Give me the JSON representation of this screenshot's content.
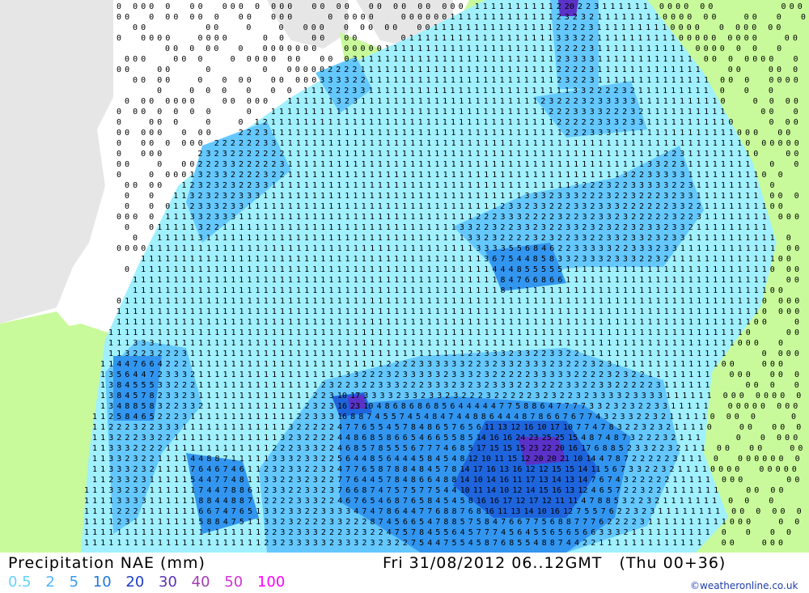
{
  "title": "Precipitation NAE (mm)",
  "valid_time": "Fri 31/08/2012 06..12GMT   (Thu 00+36)",
  "credit": "©weatheronline.co.uk",
  "legend": [
    {
      "label": "0.5",
      "color": "#64d2ff"
    },
    {
      "label": "2",
      "color": "#50b4ff"
    },
    {
      "label": "5",
      "color": "#3c9bf0"
    },
    {
      "label": "10",
      "color": "#1e78dc"
    },
    {
      "label": "20",
      "color": "#1e3cc8"
    },
    {
      "label": "30",
      "color": "#5a32b4"
    },
    {
      "label": "40",
      "color": "#a03cb4"
    },
    {
      "label": "50",
      "color": "#d232d2"
    },
    {
      "label": "100",
      "color": "#ff00ff"
    }
  ],
  "colors": {
    "sea": "#ffffff",
    "land": "#c8fa9b",
    "outside_domain": "#e6e6e6",
    "precip_0_5": "#a0f0ff",
    "precip_2": "#64c8ff",
    "precip_5": "#3296f0",
    "precip_10": "#1e64dc",
    "precip_20": "#5a32c8",
    "precip_40": "#c832c8"
  }
}
